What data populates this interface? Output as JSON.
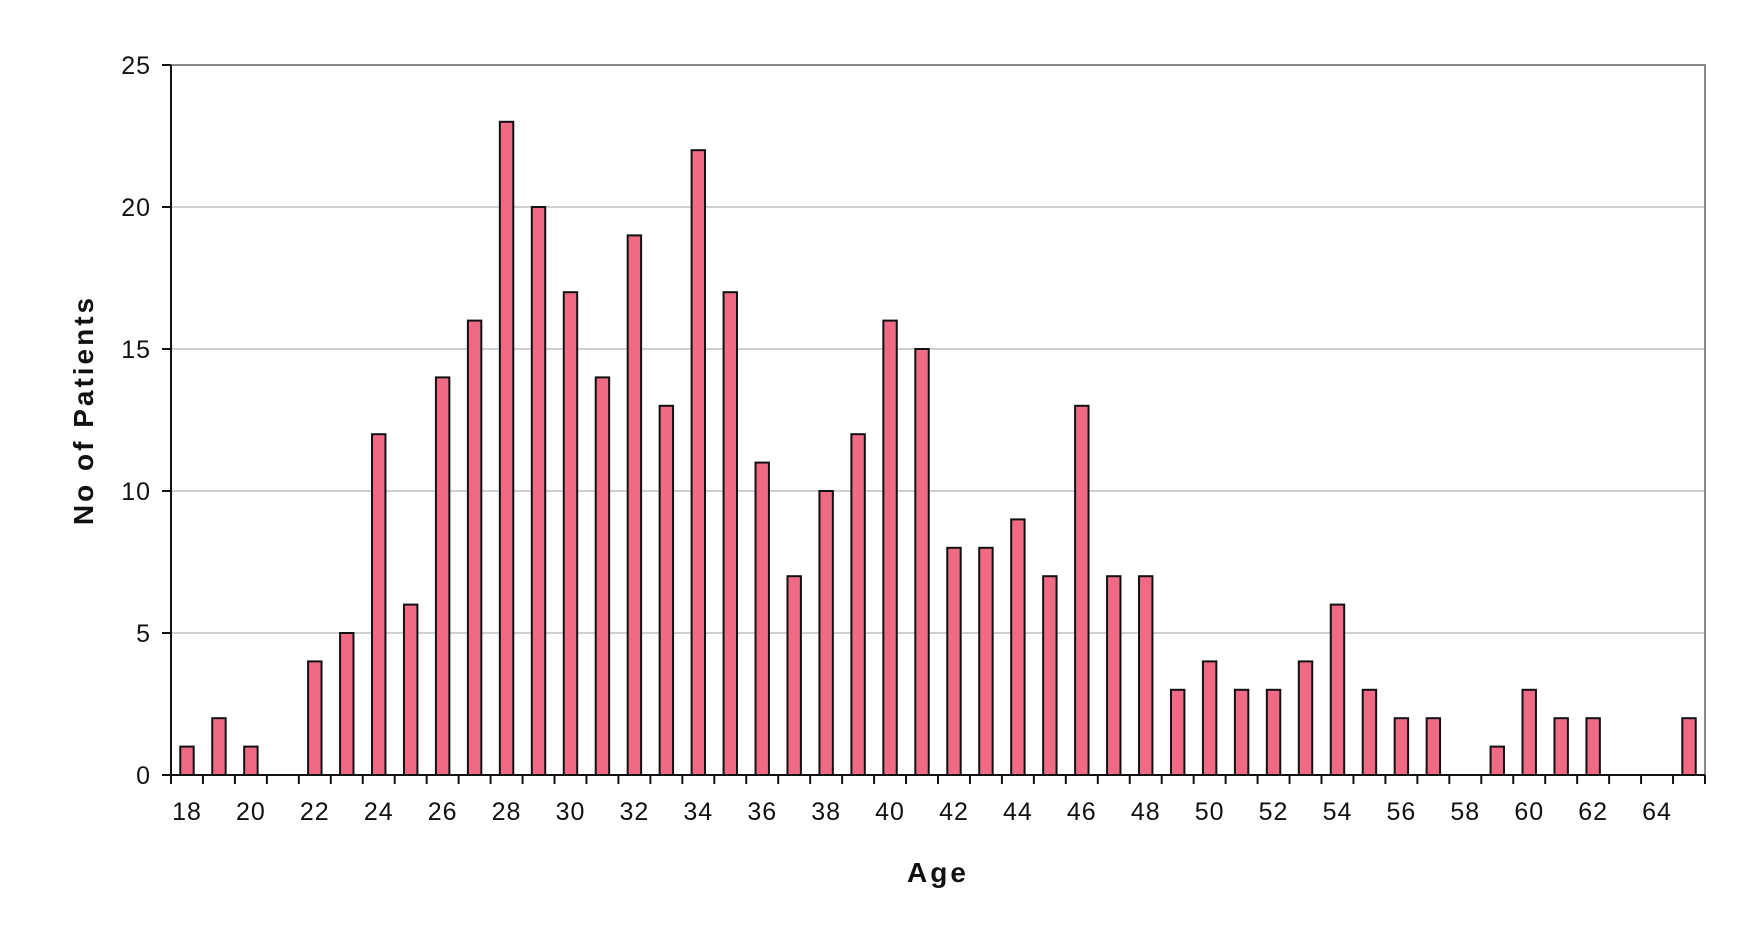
{
  "chart_data": {
    "type": "bar",
    "title": "",
    "xlabel": "Age",
    "ylabel": "No of Patients",
    "ylim": [
      0,
      25
    ],
    "y_ticks": [
      0,
      5,
      10,
      15,
      20,
      25
    ],
    "x_tick_labels": [
      "18",
      "20",
      "22",
      "24",
      "26",
      "28",
      "30",
      "32",
      "34",
      "36",
      "38",
      "40",
      "42",
      "44",
      "46",
      "48",
      "50",
      "52",
      "54",
      "56",
      "58",
      "60",
      "62",
      "64"
    ],
    "grid": "horizontal",
    "legend": "none",
    "bar_color": "#f06a86",
    "categories": [
      18,
      19,
      20,
      21,
      22,
      23,
      24,
      25,
      26,
      27,
      28,
      29,
      30,
      31,
      32,
      33,
      34,
      35,
      36,
      37,
      38,
      39,
      40,
      41,
      42,
      43,
      44,
      45,
      46,
      47,
      48,
      49,
      50,
      51,
      52,
      53,
      54,
      55,
      56,
      57,
      58,
      59,
      60,
      61,
      62,
      63,
      64,
      65
    ],
    "values": [
      1,
      2,
      1,
      0,
      4,
      5,
      12,
      6,
      14,
      16,
      23,
      20,
      17,
      14,
      19,
      13,
      22,
      17,
      11,
      7,
      10,
      12,
      16,
      15,
      8,
      8,
      9,
      7,
      13,
      7,
      7,
      3,
      4,
      3,
      3,
      4,
      6,
      3,
      2,
      2,
      0,
      1,
      3,
      2,
      2,
      0,
      0,
      2
    ]
  }
}
